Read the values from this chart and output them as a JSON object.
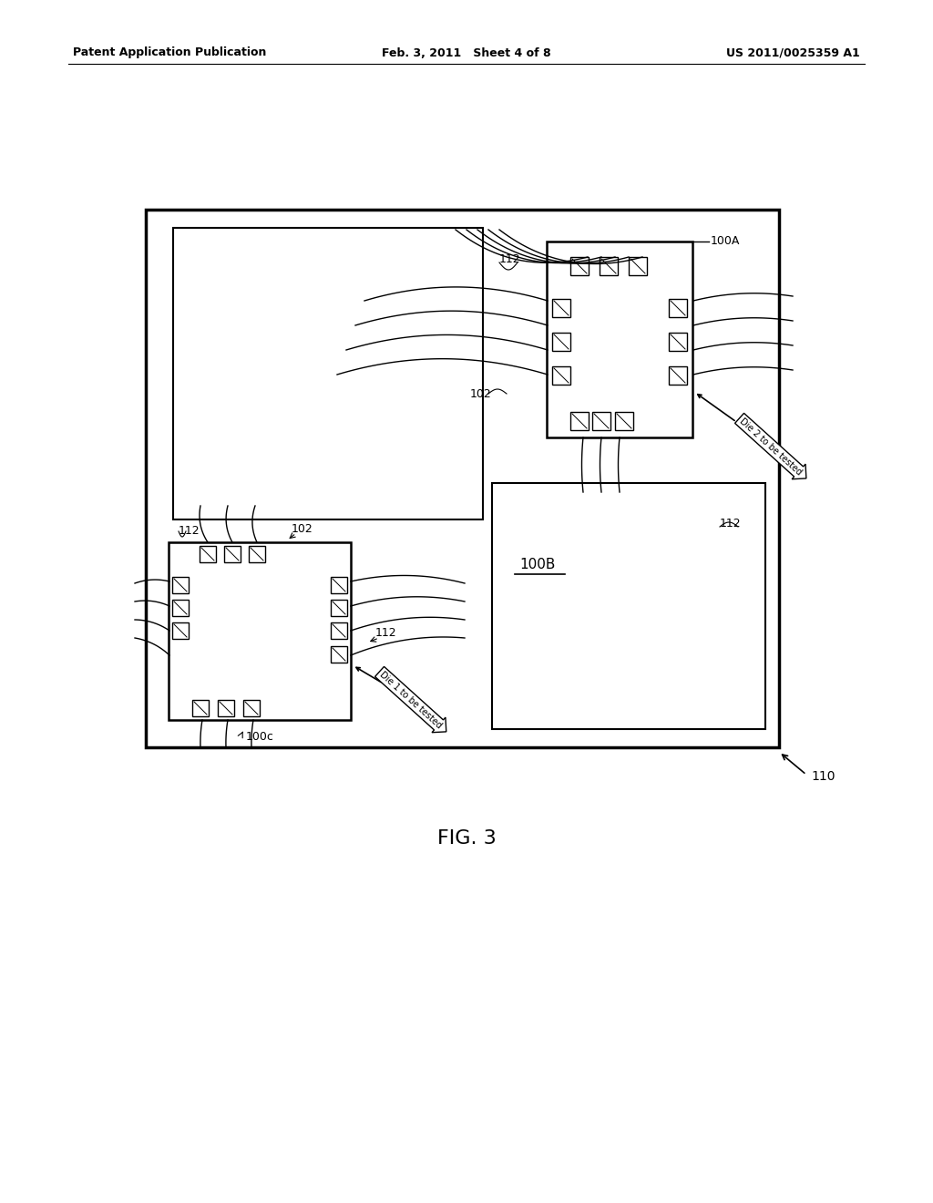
{
  "bg_color": "#ffffff",
  "header_left": "Patent Application Publication",
  "header_mid": "Feb. 3, 2011   Sheet 4 of 8",
  "header_right": "US 2011/0025359 A1",
  "fig_label": "FIG. 3"
}
